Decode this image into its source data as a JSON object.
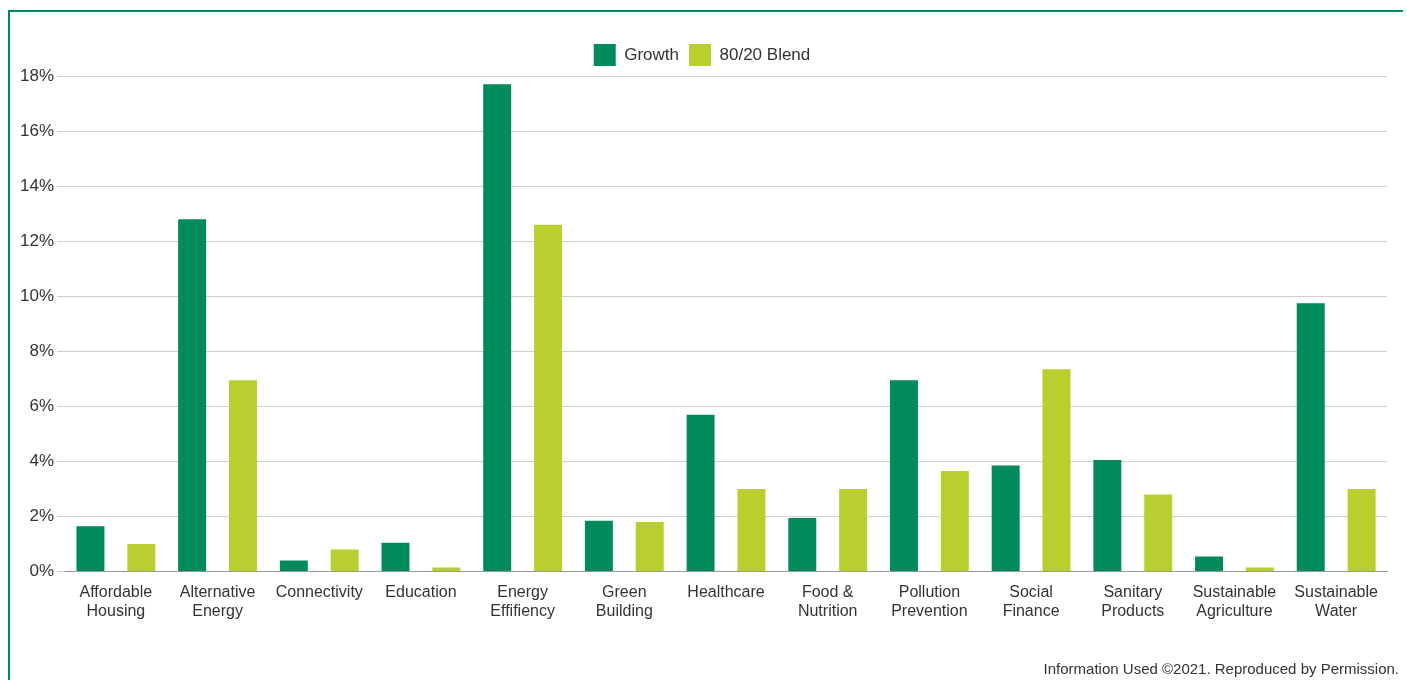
{
  "chart_data": {
    "type": "bar",
    "categories": [
      "Affordable Housing",
      "Alternative Energy",
      "Connectivity",
      "Education",
      "Energy Effifiency",
      "Green Building",
      "Healthcare",
      "Food & Nutrition",
      "Pollution Prevention",
      "Social Finance",
      "Sanitary Products",
      "Sustainable Agriculture",
      "Sustainable Water"
    ],
    "series": [
      {
        "name": "Growth",
        "color": "#008a5e",
        "values": [
          1.65,
          12.8,
          0.4,
          1.05,
          17.7,
          1.85,
          5.7,
          1.95,
          6.95,
          3.85,
          4.05,
          0.55,
          9.75
        ]
      },
      {
        "name": "80/20 Blend",
        "color": "#b9cf2f",
        "values": [
          1.0,
          6.95,
          0.8,
          0.15,
          12.6,
          1.8,
          3.0,
          3.0,
          3.65,
          7.35,
          2.8,
          0.15,
          3.0
        ]
      }
    ],
    "ylim": [
      0,
      18
    ],
    "yticks": [
      {
        "value": 0,
        "label": "0%"
      },
      {
        "value": 2,
        "label": "2%"
      },
      {
        "value": 4,
        "label": "4%"
      },
      {
        "value": 6,
        "label": "6%"
      },
      {
        "value": 8,
        "label": "8%"
      },
      {
        "value": 10,
        "label": "10%"
      },
      {
        "value": 12,
        "label": "12%"
      },
      {
        "value": 14,
        "label": "14%"
      },
      {
        "value": 16,
        "label": "16%"
      },
      {
        "value": 18,
        "label": "18%"
      }
    ],
    "grid": "y",
    "legend": "top",
    "annotations": [
      "Information Used ©2021. Reproduced by Permission."
    ]
  }
}
